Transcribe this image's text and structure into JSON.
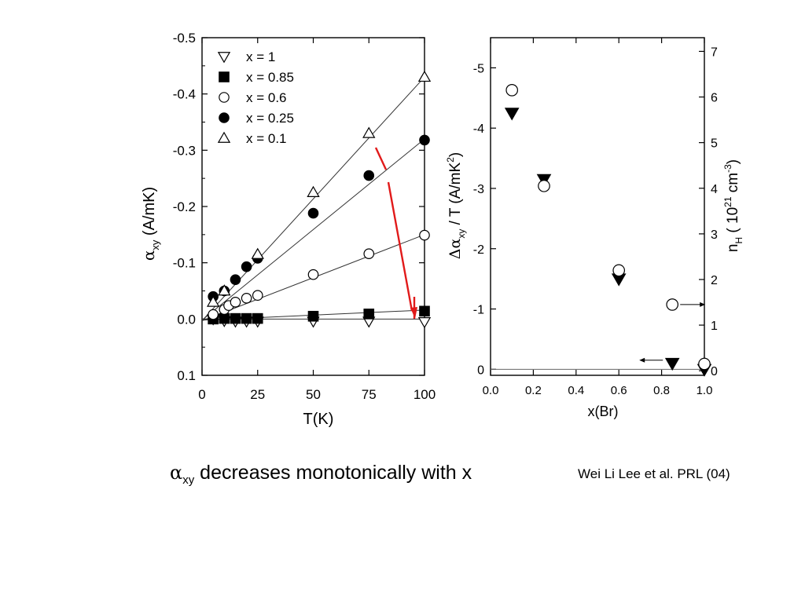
{
  "caption": {
    "symbol": "α",
    "subscript": "xy",
    "text": " decreases monotonically with x"
  },
  "citation": "Wei Li Lee et al. PRL (04)",
  "colors": {
    "arrow": "#e11a1a",
    "ink": "#000000"
  },
  "chart_data": [
    {
      "type": "scatter",
      "title": "",
      "xlabel": "T(K)",
      "ylabel_symbol": "α",
      "ylabel_sub": "xy",
      "ylabel_unit": " (A/mK)",
      "xlim": [
        0,
        100
      ],
      "ylim": [
        0.1,
        -0.5
      ],
      "y_inverted": true,
      "xticks": [
        0,
        25,
        50,
        75,
        100
      ],
      "yticks": [
        0.1,
        0.0,
        -0.1,
        -0.2,
        -0.3,
        -0.4,
        -0.5
      ],
      "ytick_labels": [
        "0.1",
        "0.0",
        "-0.1",
        "-0.2",
        "-0.3",
        "-0.4",
        "-0.5"
      ],
      "legend_position": "top-left",
      "series": [
        {
          "name": "x = 1",
          "marker": "triangle-down-open",
          "x": [
            5,
            10,
            15,
            20,
            25,
            50,
            75,
            100
          ],
          "y": [
            0.0,
            0.003,
            0.004,
            0.004,
            0.004,
            0.004,
            0.004,
            0.005
          ],
          "fit": [
            [
              0,
              0.0
            ],
            [
              100,
              0.0
            ]
          ]
        },
        {
          "name": "x = 0.85",
          "marker": "square-filled",
          "x": [
            5,
            10,
            15,
            20,
            25,
            50,
            75,
            100
          ],
          "y": [
            0.0,
            -0.001,
            -0.001,
            -0.001,
            -0.001,
            -0.005,
            -0.009,
            -0.014
          ],
          "fit": [
            [
              0,
              0.002
            ],
            [
              100,
              -0.016
            ]
          ]
        },
        {
          "name": "x = 0.6",
          "marker": "circle-open",
          "x": [
            5,
            10,
            12,
            15,
            20,
            25,
            50,
            75,
            100
          ],
          "y": [
            -0.008,
            -0.017,
            -0.024,
            -0.03,
            -0.037,
            -0.042,
            -0.079,
            -0.116,
            -0.149
          ],
          "fit": [
            [
              0,
              0.003
            ],
            [
              100,
              -0.15
            ]
          ]
        },
        {
          "name": "x = 0.25",
          "marker": "circle-filled",
          "x": [
            5,
            10,
            15,
            20,
            25,
            50,
            75,
            100
          ],
          "y": [
            -0.04,
            -0.05,
            -0.07,
            -0.093,
            -0.108,
            -0.188,
            -0.255,
            -0.318
          ],
          "fit": [
            [
              0,
              0.002
            ],
            [
              100,
              -0.32
            ]
          ]
        },
        {
          "name": "x = 0.1",
          "marker": "triangle-up-open",
          "x": [
            5,
            10,
            25,
            50,
            75,
            100
          ],
          "y": [
            -0.03,
            -0.05,
            -0.115,
            -0.225,
            -0.33,
            -0.43
          ],
          "fit": [
            [
              0,
              0.003
            ],
            [
              100,
              -0.43
            ]
          ]
        }
      ],
      "annotation": {
        "type": "arrow",
        "color": "#e11a1a",
        "from": [
          78,
          -0.307
        ],
        "to": [
          95,
          -0.003
        ]
      }
    },
    {
      "type": "scatter",
      "title": "",
      "xlabel": "x(Br)",
      "ylabel_left_symbol": "Δα",
      "ylabel_left_sub": "xy",
      "ylabel_left_unit": " / T (A/mK",
      "ylabel_left_sup": "2",
      "ylabel_left_close": ")",
      "ylabel_right_main": "n",
      "ylabel_right_sub": "H",
      "ylabel_right_unit": " ( 10",
      "ylabel_right_sup": "21",
      "ylabel_right_mid": " cm",
      "ylabel_right_sup2": "-3",
      "ylabel_right_close": ")",
      "xlim": [
        0.0,
        1.0
      ],
      "ylim_left": [
        0.1,
        -5.5
      ],
      "ylim_right": [
        -0.1,
        7.3
      ],
      "y_inverted": true,
      "xticks": [
        0.0,
        0.2,
        0.4,
        0.6,
        0.8,
        1.0
      ],
      "xtick_labels": [
        "0.0",
        "0.2",
        "0.4",
        "0.6",
        "0.8",
        "1.0"
      ],
      "yticks_left": [
        0,
        -1,
        -2,
        -3,
        -4,
        -5
      ],
      "yticks_right": [
        0,
        1,
        2,
        3,
        4,
        5,
        6,
        7
      ],
      "series": [
        {
          "axis": "left",
          "marker": "triangle-down-filled",
          "x": [
            0.1,
            0.25,
            0.6,
            0.85,
            1.0
          ],
          "y": [
            -4.25,
            -3.15,
            -1.5,
            -0.1,
            0.0
          ]
        },
        {
          "axis": "right",
          "marker": "circle-open",
          "x": [
            0.1,
            0.25,
            0.6,
            0.85,
            1.0
          ],
          "y": [
            6.15,
            4.05,
            2.2,
            1.45,
            0.15
          ]
        }
      ],
      "axis_arrows": [
        {
          "points_to": "right",
          "at": [
            0.85,
            1.45
          ]
        },
        {
          "points_to": "left",
          "at": [
            0.85,
            0.12
          ]
        }
      ]
    }
  ]
}
